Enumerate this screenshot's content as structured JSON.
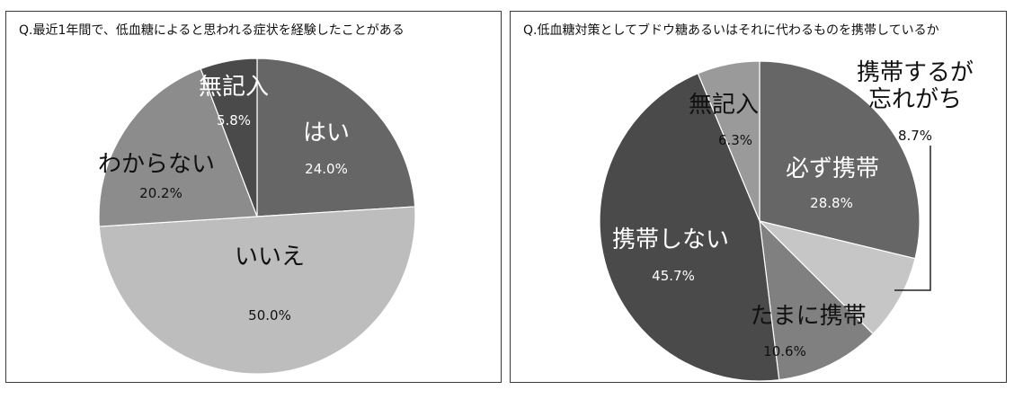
{
  "chart_data": [
    {
      "type": "pie",
      "title": "Q.最近1年間で、低血糖によると思われる症状を経験したことがある",
      "slices": [
        {
          "label": "はい",
          "value": 24.0,
          "value_label": "24.0%",
          "color": "#666666",
          "text_color": "#ffffff"
        },
        {
          "label": "いいえ",
          "value": 50.0,
          "value_label": "50.0%",
          "color": "#bdbdbd",
          "text_color": "#111111"
        },
        {
          "label": "わからない",
          "value": 20.2,
          "value_label": "20.2%",
          "color": "#8c8c8c",
          "text_color": "#111111"
        },
        {
          "label": "無記入",
          "value": 5.8,
          "value_label": "5.8%",
          "color": "#4a4a4a",
          "text_color": "#ffffff"
        }
      ]
    },
    {
      "type": "pie",
      "title": "Q.低血糖対策としてブドウ糖あるいはそれに代わるものを携帯しているか",
      "slices": [
        {
          "label": "必ず携帯",
          "value": 28.8,
          "value_label": "28.8%",
          "color": "#666666",
          "text_color": "#ffffff"
        },
        {
          "label": "携帯するが忘れがち",
          "value": 8.7,
          "value_label": "8.7%",
          "color": "#c6c6c6",
          "text_color": "#111111"
        },
        {
          "label": "たまに携帯",
          "value": 10.6,
          "value_label": "10.6%",
          "color": "#808080",
          "text_color": "#111111"
        },
        {
          "label": "携帯しない",
          "value": 45.7,
          "value_label": "45.7%",
          "color": "#4a4a4a",
          "text_color": "#ffffff"
        },
        {
          "label": "無記入",
          "value": 6.3,
          "value_label": "6.3%",
          "color": "#9a9a9a",
          "text_color": "#111111"
        }
      ]
    }
  ]
}
